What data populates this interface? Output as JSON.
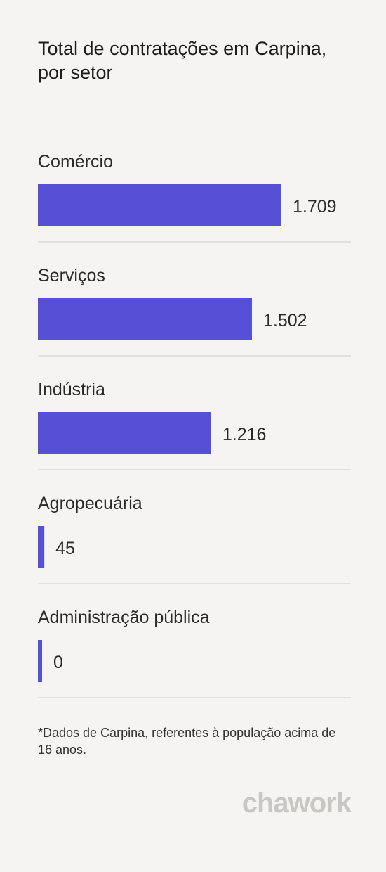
{
  "header": {
    "title_line1": "Total de contratações em Carpina,",
    "title_line2": "por setor"
  },
  "chart_data": {
    "type": "bar",
    "orientation": "horizontal",
    "categories": [
      "Comércio",
      "Serviços",
      "Indústria",
      "Agropecuária",
      "Administração pública"
    ],
    "values": [
      1709,
      1502,
      1216,
      45,
      0
    ],
    "value_labels": [
      "1.709",
      "1.502",
      "1.216",
      "45",
      "0"
    ],
    "bar_color": "#5550d6",
    "divider_color": "#e2e0dc",
    "grid": false,
    "legend": "none"
  },
  "footnote": "*Dados de Carpina, referentes à população acima de 16 anos.",
  "brand": {
    "logo_text": "chawork"
  }
}
